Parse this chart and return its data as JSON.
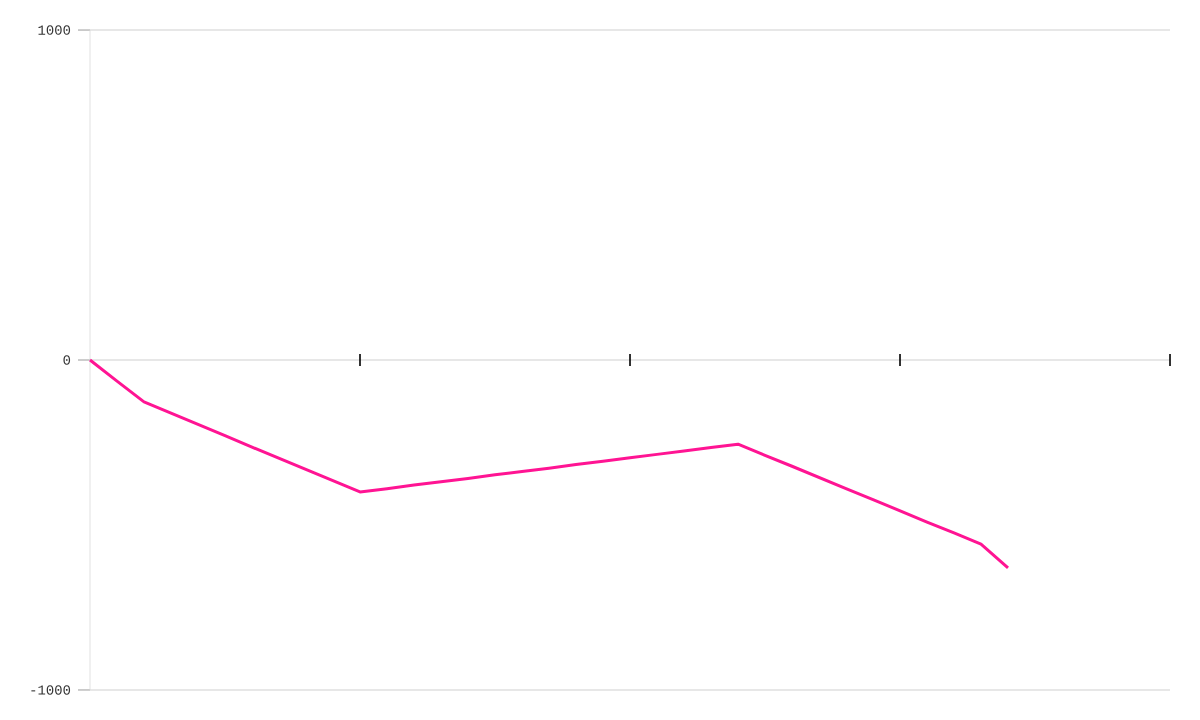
{
  "chart_data": {
    "type": "line",
    "categories": [
      null,
      null,
      null,
      null,
      null,
      null,
      null,
      null,
      null,
      null,
      null,
      null,
      null,
      null,
      null,
      null,
      null,
      null,
      null,
      null,
      null,
      null,
      null,
      null,
      null,
      null,
      null,
      null,
      null,
      null,
      null,
      null,
      null,
      null,
      null,
      null,
      null,
      null,
      null,
      null,
      null
    ],
    "series": [
      {
        "color": "#ff1493",
        "values": [
          0,
          -64,
          -127,
          -161,
          -195,
          -229,
          -264,
          -298,
          -332,
          -366,
          -400,
          -390,
          -379,
          -369,
          -359,
          -348,
          -338,
          -328,
          -317,
          -307,
          -296,
          -286,
          -276,
          -265,
          -255,
          -289,
          -322,
          -356,
          -390,
          -423,
          -457,
          -491,
          -524,
          -558,
          -630,
          null,
          null,
          null,
          null,
          null,
          null
        ]
      }
    ],
    "ylim": [
      -1000,
      1000
    ],
    "yticks": [
      -1000,
      0,
      1000
    ],
    "grid": "y",
    "tick_labels": "y"
  }
}
